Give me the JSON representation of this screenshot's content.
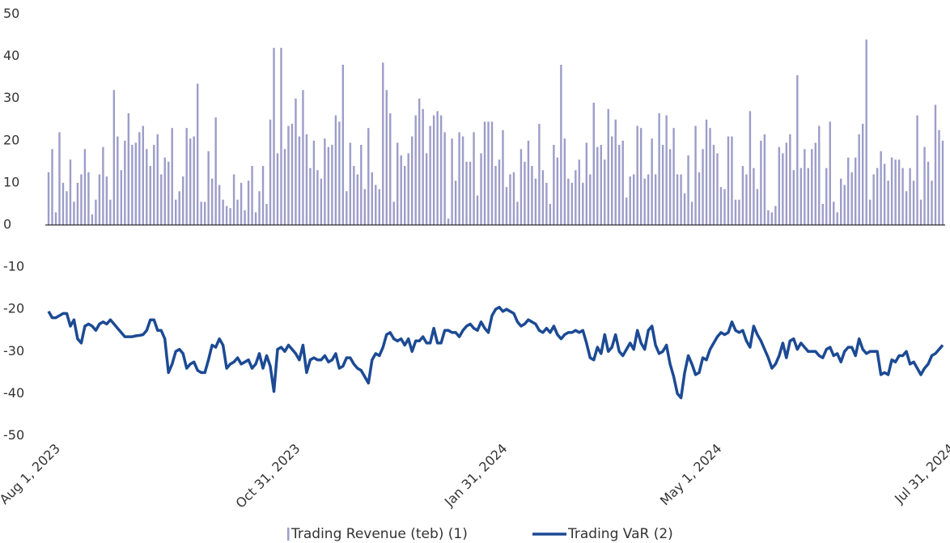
{
  "chart_data": {
    "type": "bar",
    "categories": [
      "Aug 1, 2023",
      null,
      null,
      null,
      null,
      null,
      null,
      null,
      null,
      null,
      null,
      null,
      null,
      null,
      null,
      null,
      null,
      null,
      null,
      null,
      null,
      null,
      null,
      null,
      null,
      null,
      null,
      null,
      null,
      null,
      null,
      null,
      null,
      null,
      null,
      null,
      null,
      null,
      null,
      null,
      null,
      null,
      null,
      null,
      null,
      null,
      null,
      null,
      null,
      null,
      null,
      null,
      null,
      null,
      null,
      null,
      null,
      null,
      null,
      null,
      null,
      null,
      null,
      null,
      null,
      null,
      "Oct 31, 2023",
      null,
      null,
      null,
      null,
      null,
      null,
      null,
      null,
      null,
      null,
      null,
      null,
      null,
      null,
      null,
      null,
      null,
      null,
      null,
      null,
      null,
      null,
      null,
      null,
      null,
      null,
      null,
      null,
      null,
      null,
      null,
      null,
      null,
      null,
      null,
      null,
      null,
      null,
      null,
      null,
      null,
      null,
      null,
      null,
      null,
      null,
      null,
      null,
      null,
      null,
      null,
      null,
      null,
      null,
      null,
      null,
      "Jan 31, 2024",
      null,
      null,
      null,
      null,
      null,
      null,
      null,
      null,
      null,
      null,
      null,
      null,
      null,
      null,
      null,
      null,
      null,
      null,
      null,
      null,
      null,
      null,
      null,
      null,
      null,
      null,
      null,
      null,
      null,
      null,
      null,
      null,
      null,
      null,
      null,
      null,
      null,
      null,
      null,
      null,
      null,
      null,
      null,
      null,
      null,
      null,
      null,
      null,
      null,
      null,
      null,
      null,
      null,
      null,
      null,
      null,
      null,
      null,
      "May 1, 2024",
      null,
      null,
      null,
      null,
      null,
      null,
      null,
      null,
      null,
      null,
      null,
      null,
      null,
      null,
      null,
      null,
      null,
      null,
      null,
      null,
      null,
      null,
      null,
      null,
      null,
      null,
      null,
      null,
      null,
      null,
      null,
      null,
      null,
      null,
      null,
      null,
      null,
      null,
      null,
      null,
      null,
      null,
      null,
      null,
      null,
      null,
      null,
      null,
      null,
      null,
      null,
      null,
      null,
      null,
      null,
      null,
      null,
      null,
      null,
      null,
      null,
      null,
      null,
      "Jul 31, 2024"
    ],
    "series": [
      {
        "name": "Trading Revenue (teb) (1)",
        "type": "bar",
        "color": "#9c9dc9",
        "values": [
          12.5,
          18,
          3,
          22,
          10,
          8,
          15.5,
          5.5,
          10,
          12,
          18,
          12.5,
          2.5,
          6,
          12,
          18.5,
          11.5,
          6,
          32,
          21,
          13,
          20,
          26.5,
          19,
          19.5,
          22,
          23.5,
          18,
          14,
          19,
          21.5,
          12,
          16,
          15,
          23,
          6,
          8,
          11.5,
          23,
          20.5,
          21,
          33.5,
          5.5,
          5.5,
          17.5,
          11,
          25.5,
          9.5,
          6,
          4.5,
          4,
          12,
          6,
          10,
          3.5,
          10.5,
          14,
          3,
          8,
          14,
          5,
          25,
          42,
          17,
          42,
          18,
          23.5,
          24,
          30,
          21,
          32,
          21.5,
          13.5,
          20,
          13,
          11,
          20.5,
          18.5,
          19,
          26,
          24.5,
          38,
          8,
          19.5,
          14,
          12,
          19,
          8.5,
          23,
          12.5,
          9.5,
          8.5,
          38.5,
          32,
          26.5,
          5.5,
          19.5,
          16.5,
          14,
          17,
          21,
          26,
          30,
          27.5,
          17,
          23.5,
          26,
          27,
          26,
          22,
          1.5,
          20.5,
          10.5,
          22,
          21,
          15,
          15,
          22,
          7,
          17,
          24.5,
          24.5,
          24.5,
          14,
          15.5,
          22.5,
          9,
          12,
          12.5,
          5.5,
          18,
          15,
          20,
          14,
          11,
          24,
          13,
          10,
          5,
          19,
          16,
          38,
          20.5,
          11,
          10,
          13,
          15.5,
          10,
          19.5,
          12,
          29,
          18.5,
          19,
          15.5,
          27.5,
          21,
          25,
          19,
          20,
          6.5,
          11.5,
          12,
          23.5,
          23,
          11,
          12,
          20.5,
          12,
          26.5,
          19,
          26,
          18,
          23,
          12,
          12,
          7.5,
          16.5,
          5.5,
          23.5,
          12.5,
          18,
          25,
          23,
          19,
          17,
          9,
          8.5,
          21,
          21,
          6,
          6,
          14,
          12,
          27,
          13.5,
          8.5,
          20,
          21.5,
          3.5,
          3,
          4.5,
          18.5,
          17,
          19.5,
          21.5,
          13,
          35.5,
          13.5,
          18,
          13.5,
          18,
          19.5,
          23.5,
          5,
          13.5,
          24.5,
          5.5,
          3,
          11,
          9.5,
          16,
          12.5,
          16,
          21.5,
          24,
          44,
          6,
          12,
          13.5,
          17.5,
          14.5,
          10.5,
          16,
          15.5,
          15.5,
          13.5,
          8,
          13.5,
          10.5,
          26,
          6,
          18.5,
          15,
          10.5,
          28.5,
          22.5,
          20
        ]
      },
      {
        "name": "Trading VaR (2)",
        "type": "line",
        "color": "#1c4a94",
        "values": [
          -20.5,
          -22,
          -22,
          -21.5,
          -21,
          -21,
          -24,
          -22.5,
          -27,
          -28,
          -24,
          -23.5,
          -24,
          -25,
          -23.5,
          -23,
          -23.5,
          -22.5,
          -23.5,
          -24.5,
          -25.5,
          -26.5,
          -26.5,
          -26.5,
          -26.3,
          -26.2,
          -26,
          -25,
          -22.5,
          -22.5,
          -25,
          -25,
          -27,
          -35,
          -33,
          -30,
          -29.5,
          -30.5,
          -34,
          -33,
          -32.5,
          -34.5,
          -35,
          -35,
          -32,
          -28.5,
          -29,
          -27,
          -28.5,
          -34,
          -33,
          -32.5,
          -31.5,
          -33,
          -32.5,
          -32,
          -34,
          -33,
          -30.5,
          -34,
          -31,
          -33.5,
          -39.5,
          -29.5,
          -29,
          -30,
          -28.5,
          -29.5,
          -30.5,
          -32,
          -28.5,
          -35,
          -32,
          -31.5,
          -32,
          -32,
          -31,
          -32.5,
          -32,
          -30.5,
          -34,
          -33.5,
          -31.5,
          -31.5,
          -33,
          -34,
          -34.5,
          -36,
          -37.5,
          -32,
          -30.5,
          -31,
          -29,
          -26,
          -25.5,
          -27,
          -27.5,
          -27,
          -28.5,
          -27,
          -30,
          -27.5,
          -27.5,
          -26.5,
          -28,
          -28,
          -24.5,
          -28,
          -28,
          -25,
          -25,
          -25.5,
          -25.5,
          -26.5,
          -25,
          -24,
          -23.5,
          -24.5,
          -25,
          -23,
          -24.5,
          -25.5,
          -21.5,
          -20,
          -19.5,
          -20.5,
          -20,
          -20.5,
          -21,
          -23,
          -24,
          -23.5,
          -22.5,
          -23,
          -23.5,
          -25,
          -25.5,
          -24.5,
          -25.5,
          -24,
          -26,
          -27,
          -26,
          -25.5,
          -25.5,
          -25,
          -25.5,
          -25,
          -28,
          -31.5,
          -32,
          -29,
          -30.5,
          -26,
          -30,
          -29,
          -26,
          -30,
          -31,
          -29.5,
          -28,
          -29.5,
          -25,
          -28,
          -29.5,
          -25,
          -24,
          -28.5,
          -30.5,
          -30,
          -28.5,
          -33,
          -36,
          -40,
          -41,
          -35,
          -31,
          -33,
          -35.5,
          -35,
          -31.5,
          -32,
          -29.5,
          -28,
          -26.5,
          -25.5,
          -26,
          -25.5,
          -23,
          -25,
          -25.5,
          -25,
          -27.5,
          -29,
          -24,
          -26,
          -27.5,
          -29.5,
          -31.5,
          -34,
          -33,
          -31,
          -28,
          -31.5,
          -27.5,
          -27,
          -29.5,
          -28,
          -29,
          -30,
          -30,
          -30,
          -31,
          -31.5,
          -29.5,
          -29,
          -31,
          -30.5,
          -32.5,
          -30,
          -29,
          -29,
          -31,
          -27,
          -29.5,
          -30.5,
          -30,
          -30,
          -30,
          -35.5,
          -35,
          -35.5,
          -32,
          -32.5,
          -31,
          -31,
          -30,
          -33,
          -32.5,
          -34,
          -35.5,
          -34,
          -33,
          -31,
          -30.5,
          -29.5,
          -28.5
        ]
      }
    ],
    "ylim": [
      -50,
      50
    ],
    "yticks": [
      -50,
      -40,
      -30,
      -20,
      -10,
      0,
      10,
      20,
      30,
      40,
      50
    ],
    "grid": false,
    "legend": "bottom"
  }
}
